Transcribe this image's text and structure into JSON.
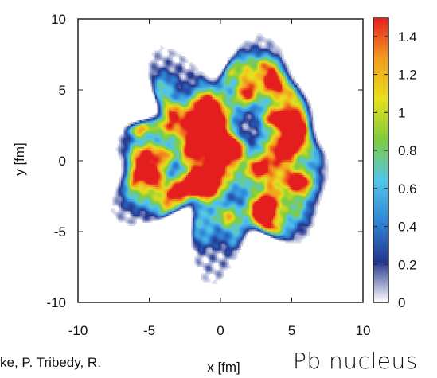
{
  "chart_data": {
    "type": "heatmap",
    "title": "",
    "xlabel": "x [fm]",
    "ylabel": "y [fm]",
    "xlim": [
      -10,
      10
    ],
    "ylim": [
      -10,
      10
    ],
    "x_ticks": [
      "-10",
      "-5",
      "0",
      "5",
      "10"
    ],
    "y_ticks": [
      "10",
      "5",
      "0",
      "-5",
      "-10"
    ],
    "colorbar": {
      "min": 0,
      "max": 1.5,
      "ticks": [
        "1.4",
        "1.2",
        "1",
        "0.8",
        "0.6",
        "0.4",
        "0.2",
        "0"
      ],
      "colors": [
        "#ffffff",
        "#23368f",
        "#2f86d6",
        "#53c6ea",
        "#7fcc3c",
        "#e8e01e",
        "#f39b1e",
        "#e41e1e"
      ]
    },
    "distribution": {
      "description_free": true,
      "shape": "disk",
      "center": [
        0.3,
        0.5
      ],
      "radius": 6.8,
      "edge_value": 0.2,
      "hotspots": [
        {
          "x": -2.8,
          "y": -2.0,
          "value": 1.35
        },
        {
          "x": -0.8,
          "y": 1.2,
          "value": 1.3
        },
        {
          "x": 0.2,
          "y": 1.8,
          "value": 1.3
        },
        {
          "x": -1.5,
          "y": -1.4,
          "value": 1.2
        },
        {
          "x": 1.2,
          "y": 0.6,
          "value": 1.25
        },
        {
          "x": -2.2,
          "y": 0.5,
          "value": 1.1
        },
        {
          "x": 3.5,
          "y": 3.0,
          "value": 1.15
        },
        {
          "x": 3.0,
          "y": -3.5,
          "value": 1.0
        },
        {
          "x": 4.5,
          "y": 1.0,
          "value": 1.05
        },
        {
          "x": -3.5,
          "y": 3.5,
          "value": 0.95
        },
        {
          "x": 1.8,
          "y": 4.8,
          "value": 1.1
        },
        {
          "x": -4.5,
          "y": -0.5,
          "value": 0.9
        },
        {
          "x": 0.5,
          "y": -3.8,
          "value": 0.9
        },
        {
          "x": -1.0,
          "y": 4.0,
          "value": 0.95
        },
        {
          "x": 5.2,
          "y": -1.5,
          "value": 0.85
        }
      ]
    }
  },
  "credit_text": "ke, P. Tribedy, R.",
  "caption_text": "Pb nucleus"
}
